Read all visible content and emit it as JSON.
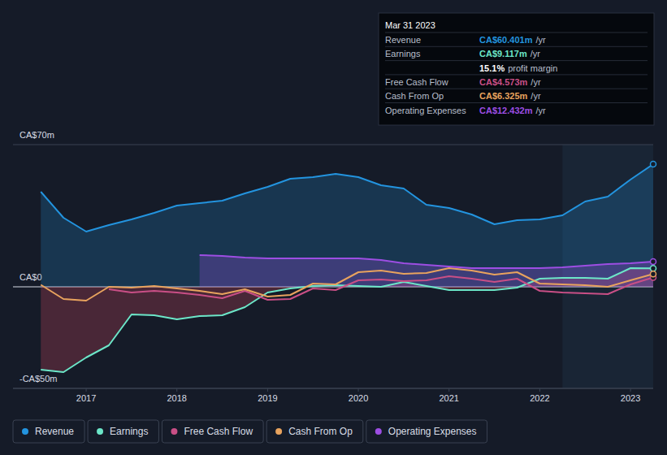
{
  "chart_data": {
    "type": "line",
    "x": [
      2016.5,
      2016.75,
      2017.0,
      2017.25,
      2017.5,
      2017.75,
      2018.0,
      2018.25,
      2018.5,
      2018.75,
      2019.0,
      2019.25,
      2019.5,
      2019.75,
      2020.0,
      2020.25,
      2020.5,
      2020.75,
      2021.0,
      2021.25,
      2021.5,
      2021.75,
      2022.0,
      2022.25,
      2022.5,
      2022.75,
      2023.0,
      2023.25
    ],
    "xlim": [
      2016.48,
      2023.25
    ],
    "xticks": [
      2017,
      2018,
      2019,
      2020,
      2021,
      2022,
      2023
    ],
    "ylim": [
      -50,
      70
    ],
    "yticks": [
      {
        "value": -50,
        "label": "-CA$50m"
      },
      {
        "value": 0,
        "label": "CA$0"
      },
      {
        "value": 70,
        "label": "CA$70m"
      }
    ],
    "grid": true,
    "legend": "bottom",
    "highlight_x": [
      2022.25,
      2023.25
    ],
    "series": [
      {
        "name": "Revenue",
        "color": "#2394df",
        "values": [
          46.8,
          34,
          27.2,
          30.4,
          33.2,
          36.4,
          40,
          41.2,
          42.4,
          46,
          49.2,
          53.2,
          54,
          55.6,
          54,
          50,
          48.4,
          40.4,
          38.8,
          35.6,
          30.8,
          32.8,
          33.2,
          35.2,
          42,
          44.4,
          52.8,
          60.4
        ]
      },
      {
        "name": "Earnings",
        "color": "#6ce6c8",
        "values": [
          -40.8,
          -42,
          -34.8,
          -28.8,
          -13.6,
          -14,
          -16,
          -14.4,
          -14,
          -10,
          -2.8,
          -0.8,
          0.4,
          0.8,
          0.4,
          0,
          2.4,
          0.4,
          -1.6,
          -1.6,
          -1.6,
          -0.4,
          4,
          4.4,
          4.4,
          4,
          9.2,
          9.1
        ]
      },
      {
        "name": "Free Cash Flow",
        "color": "#c94f86",
        "values": [
          null,
          null,
          null,
          -1.2,
          -2.8,
          -2,
          -2.8,
          -4,
          -5.6,
          -2,
          -6.4,
          -6,
          -0.8,
          -1.6,
          3.2,
          3.6,
          2.8,
          3.2,
          5.2,
          4,
          2.4,
          4,
          -2,
          -2.8,
          -3.2,
          -3.6,
          1.2,
          4.6
        ]
      },
      {
        "name": "Cash From Op",
        "color": "#e8a35e",
        "values": [
          1,
          -6,
          -6.8,
          0,
          -0.4,
          0.4,
          -0.8,
          -2,
          -3.6,
          -1.2,
          -4.8,
          -4,
          1.6,
          1.2,
          7.2,
          8,
          6.4,
          6.8,
          9.2,
          8,
          6,
          7.2,
          1.6,
          1.2,
          0.8,
          0,
          3.2,
          6.3
        ]
      },
      {
        "name": "Operating Expenses",
        "color": "#9d4ee3",
        "values": [
          null,
          null,
          null,
          null,
          null,
          null,
          null,
          15.6,
          15.2,
          14.4,
          14,
          14,
          14,
          14,
          14,
          13.2,
          11.6,
          10.8,
          10,
          9.2,
          9.2,
          9.2,
          9.2,
          9.6,
          10.4,
          11.2,
          11.6,
          12.4
        ]
      }
    ],
    "tooltip": {
      "title": "Mar 31 2023",
      "rows": [
        {
          "label": "Revenue",
          "value": "CA$60.401m",
          "unit": "/yr",
          "color": "#2394df"
        },
        {
          "label": "Earnings",
          "value": "CA$9.117m",
          "unit": "/yr",
          "color": "#6ce6c8"
        },
        {
          "value": "15.1%",
          "unit": "profit margin",
          "color": "#ffffff"
        },
        {
          "label": "Free Cash Flow",
          "value": "CA$4.573m",
          "unit": "/yr",
          "color": "#c94f86"
        },
        {
          "label": "Cash From Op",
          "value": "CA$6.325m",
          "unit": "/yr",
          "color": "#e8a35e"
        },
        {
          "label": "Operating Expenses",
          "value": "CA$12.432m",
          "unit": "/yr",
          "color": "#9d4ee3"
        }
      ]
    }
  }
}
